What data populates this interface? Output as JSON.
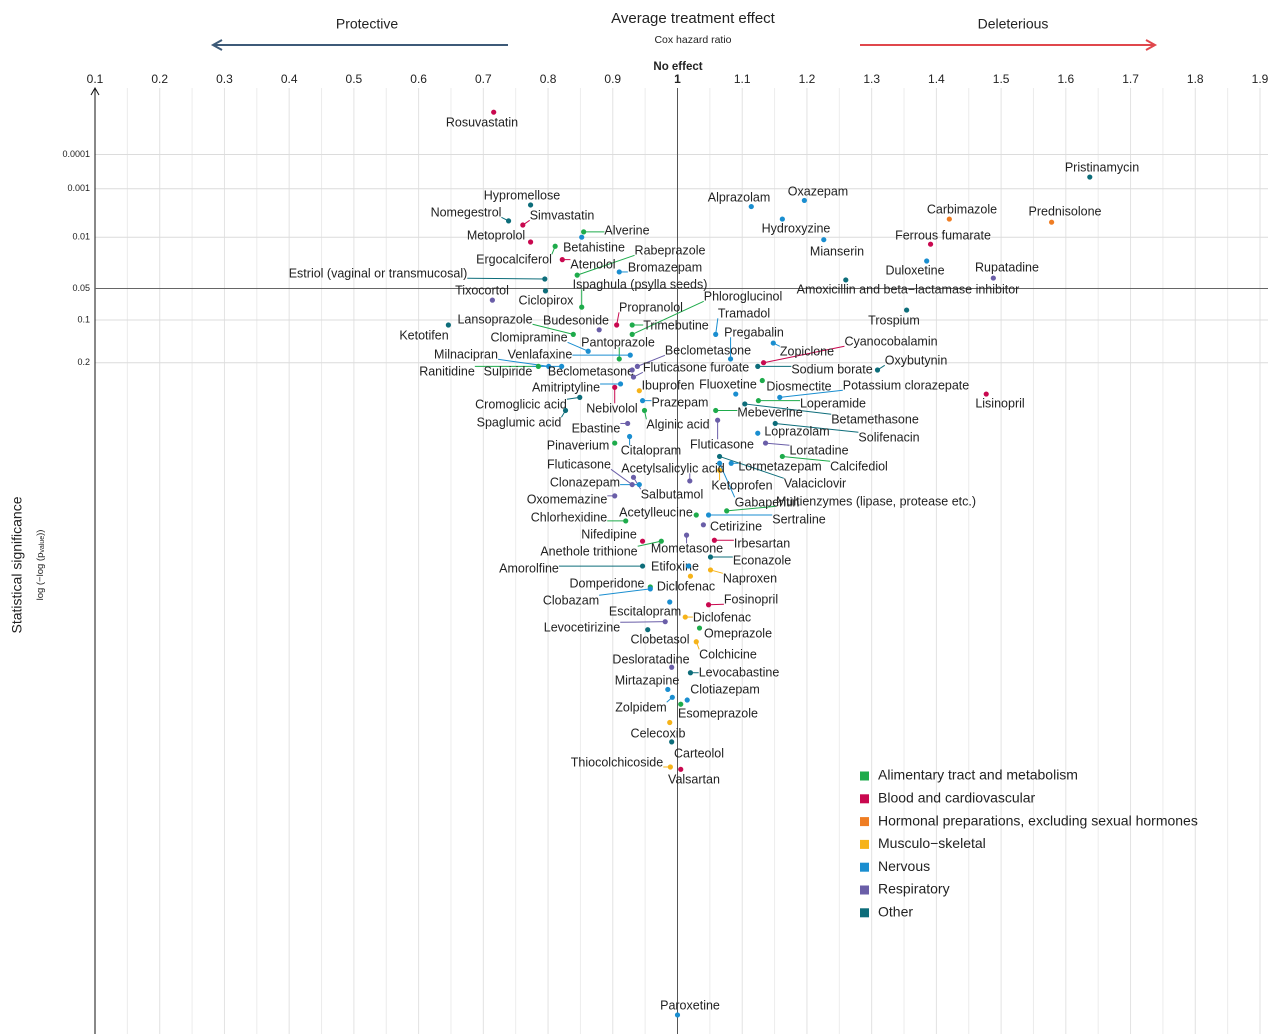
{
  "chart_data": {
    "type": "scatter",
    "title": "Average treatment effect",
    "subtitle": "Cox hazard ratio",
    "left_note": "Protective",
    "right_note": "Deleterious",
    "x_reference_label": "No effect",
    "ylabel": "Statistical significance",
    "ylabel_note": [
      "log (−log (p",
      "value",
      "))"
    ],
    "xlim": [
      0.1,
      1.9
    ],
    "xticks": [
      0.1,
      0.2,
      0.3,
      0.4,
      0.5,
      0.6,
      0.7,
      0.8,
      0.9,
      1,
      1.1,
      1.2,
      1.3,
      1.4,
      1.5,
      1.6,
      1.7,
      1.8,
      1.9
    ],
    "xtick_colors": [
      "#2e4a6b",
      "#30506f",
      "#34597f",
      "#3b6894",
      "#4a7faa",
      "#5e9bc5",
      "#73b3d7",
      "#8ccadf",
      "#aadbe6",
      "#000000",
      "#f4a7a8",
      "#f29293",
      "#ef8080",
      "#ec6c6e",
      "#e85c5e",
      "#e24e52",
      "#dc4347",
      "#d6393e",
      "#d03035"
    ],
    "ylim": [
      1.05e-07,
      0.9942
    ],
    "yscale": "log-minus-log",
    "yticks": [
      0.0001,
      0.001,
      0.01,
      0.05,
      0.1,
      0.2
    ],
    "reference_lines": {
      "x": 1,
      "y": 0.05
    },
    "grid": true,
    "legend": "bottom-right",
    "series": [
      {
        "name": "Alimentary tract and metabolism",
        "color": "#1eab4b",
        "labels": [
          "Alverine",
          "Rabeprazole",
          "Ergocalciferol",
          "Ispaghula (psylla seeds)",
          "Phloroglucinol",
          "Lansoprazole",
          "Trimebutine",
          "Pantoprazole",
          "Ranitidine",
          "Diosmectite",
          "Loperamide",
          "Mebeverine",
          "Alginic acid",
          "Pinaverium",
          "Calcifediol",
          "Multienzymes (lipase, protease etc.)",
          "Acetylleucine",
          "Chlorhexidine",
          "Anethole trithione",
          "Domperidone",
          "Omeprazole",
          "Esomeprazole"
        ],
        "x": [
          0.855,
          0.845,
          0.811,
          0.852,
          0.93,
          0.839,
          0.93,
          0.91,
          0.785,
          1.131,
          1.125,
          1.059,
          0.949,
          0.903,
          1.162,
          1.076,
          1.029,
          0.92,
          0.975,
          0.958,
          1.034,
          1.005
        ],
        "values": [
          0.0081,
          0.035,
          0.014,
          0.077,
          0.13,
          0.13,
          0.11,
          0.19,
          0.21,
          0.25,
          0.31,
          0.34,
          0.34,
          0.44,
          0.48,
          0.628,
          0.638,
          0.652,
          0.697,
          0.782,
          0.84,
          0.912
        ]
      },
      {
        "name": "Blood and cardiovascular",
        "color": "#c9084f",
        "labels": [
          "Rosuvastatin",
          "Simvastatin",
          "Metoprolol",
          "Atenolol",
          "Ferrous fumarate",
          "Propranolol",
          "Cyanocobalamin",
          "Lisinopril",
          "Nebivolol",
          "Nifedipine",
          "Irbesartan",
          "Fosinopril",
          "Valsartan"
        ],
        "x": [
          0.716,
          0.761,
          0.773,
          0.822,
          1.391,
          0.906,
          1.133,
          1.477,
          0.903,
          0.946,
          1.057,
          1.048,
          1.005
        ],
        "values": [
          2e-06,
          0.0061,
          0.012,
          0.022,
          0.013,
          0.11,
          0.2,
          0.29,
          0.27,
          0.697,
          0.695,
          0.809,
          0.948
        ]
      },
      {
        "name": "Hormonal preparations, excluding sexual hormones",
        "color": "#ef7d23",
        "labels": [
          "Carbimazole",
          "Prednisolone"
        ],
        "x": [
          1.42,
          1.578
        ],
        "values": [
          0.0047,
          0.0054
        ]
      },
      {
        "name": "Musculo−skeletal",
        "color": "#f6b319",
        "labels": [
          "Ibuprofen",
          "Ketoprofen",
          "Naproxen",
          "Diclofenac",
          "Diclofenac",
          "Colchicine",
          "Celecoxib",
          "Thiocolchicoside"
        ],
        "x": [
          0.941,
          1.065,
          1.051,
          1.02,
          1.012,
          1.029,
          0.988,
          0.989
        ],
        "values": [
          0.28,
          0.52,
          0.753,
          0.764,
          0.826,
          0.856,
          0.924,
          0.947
        ]
      },
      {
        "name": "Nervous",
        "color": "#1a8ed0",
        "labels": [
          "Betahistine",
          "Bromazepam",
          "Alprazolam",
          "Oxazepam",
          "Hydroxyzine",
          "Mianserin",
          "Duloxetine",
          "Tramadol",
          "Pregabalin",
          "Clomipramine",
          "Zopiclone",
          "Milnacipran",
          "Venlafaxine",
          "Sulpiride",
          "Fluoxetine",
          "Potassium clorazepate",
          "Amitriptyline",
          "Prazepam",
          "Loprazolam",
          "Citalopram",
          "Lormetazepam",
          "Clonazepam",
          "Gabapentin",
          "Sertraline",
          "Etifoxine",
          "Clobazam",
          "Escitalopram",
          "Mirtazapine",
          "Clotiazepam",
          "Zolpidem",
          "Paroxetine"
        ],
        "x": [
          0.852,
          0.91,
          1.114,
          1.196,
          1.162,
          1.226,
          1.385,
          1.059,
          1.082,
          0.862,
          1.148,
          0.801,
          0.927,
          0.821,
          1.09,
          1.158,
          0.912,
          0.946,
          1.124,
          0.926,
          1.083,
          0.941,
          1.065,
          1.048,
          1.017,
          0.958,
          0.988,
          0.985,
          1.015,
          0.992,
          1.0
        ],
        "values": [
          0.01,
          0.032,
          0.0026,
          0.0019,
          0.0047,
          0.011,
          0.023,
          0.13,
          0.19,
          0.17,
          0.15,
          0.21,
          0.18,
          0.21,
          0.29,
          0.3,
          0.26,
          0.31,
          0.41,
          0.42,
          0.5,
          0.56,
          0.5,
          0.638,
          0.746,
          0.785,
          0.805,
          0.901,
          0.909,
          0.907,
          0.9932
        ]
      },
      {
        "name": "Respiratory",
        "color": "#6a5ea8",
        "labels": [
          "Tixocortol",
          "Budesonide",
          "Beclometasone",
          "Fluticasone furoate",
          "Beclometasone",
          "Rupatadine",
          "Ebastine",
          "Fluticasone",
          "Loratadine",
          "Fluticasone",
          "Acetylsalicylic acid",
          "Salbutamol",
          "Oxomemazine",
          "Cetirizine",
          "Mometasone",
          "Levocetirizine",
          "Desloratadine"
        ],
        "x": [
          0.714,
          0.879,
          0.938,
          0.932,
          0.93,
          1.488,
          0.923,
          1.062,
          1.136,
          0.93,
          1.019,
          0.932,
          0.903,
          1.04,
          1.014,
          0.981,
          0.991
        ],
        "values": [
          0.066,
          0.12,
          0.21,
          0.24,
          0.22,
          0.038,
          0.38,
          0.37,
          0.44,
          0.56,
          0.55,
          0.54,
          0.59,
          0.661,
          0.684,
          0.832,
          0.882
        ]
      },
      {
        "name": "Other",
        "color": "#0d6d7a",
        "labels": [
          "Pristinamycin",
          "Hypromellose",
          "Nomegestrol",
          "Estriol (vaginal or transmucosal)",
          "Ciclopirox",
          "Amoxicillin and beta−lactamase inhibitor",
          "Trospium",
          "Ketotifen",
          "Oxybutynin",
          "Sodium borate",
          "Cromoglicic acid",
          "Betamethasone",
          "Spaglumic acid",
          "Solifenacin",
          "Valaciclovir",
          "Econazole",
          "Amorolfine",
          "Clobetasol",
          "Levocabastine",
          "Carteolol"
        ],
        "x": [
          1.637,
          0.773,
          0.739,
          0.795,
          0.796,
          1.26,
          1.354,
          0.646,
          1.309,
          1.124,
          0.849,
          1.104,
          0.827,
          1.151,
          1.065,
          1.051,
          0.946,
          0.954,
          1.02,
          0.991
        ],
        "values": [
          0.00049,
          0.0024,
          0.0051,
          0.039,
          0.053,
          0.04,
          0.082,
          0.11,
          0.22,
          0.21,
          0.3,
          0.32,
          0.34,
          0.38,
          0.48,
          0.729,
          0.746,
          0.842,
          0.887,
          0.935
        ]
      }
    ]
  }
}
